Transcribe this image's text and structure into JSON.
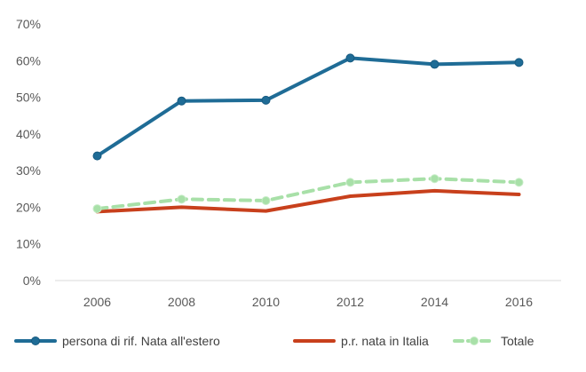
{
  "chart_data": {
    "type": "line",
    "x": [
      "2006",
      "2008",
      "2010",
      "2012",
      "2014",
      "2016"
    ],
    "ylim": [
      0,
      70
    ],
    "yticks": [
      "0%",
      "10%",
      "20%",
      "30%",
      "40%",
      "50%",
      "60%",
      "70%"
    ],
    "grid": false,
    "legend_position": "bottom",
    "series": [
      {
        "name": "persona di rif. Nata all'estero",
        "values": [
          34,
          49,
          49.2,
          60.7,
          59,
          59.5
        ],
        "color": "#1F6C96",
        "style": "solid",
        "markers": true
      },
      {
        "name": "p.r. nata in Italia",
        "values": [
          18.8,
          20,
          19,
          23,
          24.5,
          23.5
        ],
        "color": "#C8401C",
        "style": "solid",
        "markers": false
      },
      {
        "name": "Totale",
        "values": [
          19.6,
          22.2,
          21.8,
          26.8,
          27.8,
          26.8
        ],
        "color": "#A8E0A8",
        "style": "dashed",
        "markers": true
      }
    ]
  }
}
